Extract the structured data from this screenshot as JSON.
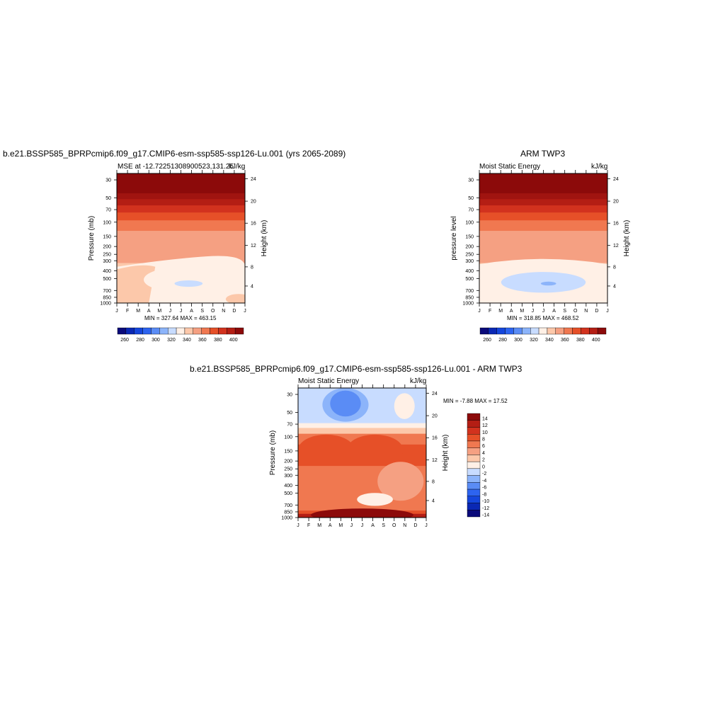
{
  "chart_data": [
    {
      "type": "heatmap",
      "title": "b.e21.BSSP585_BPRPcmip6.f09_g17.CMIP6-esm-ssp585-ssp126-Lu.001 (yrs 2065-2089)",
      "subtitle_left": "MSE at -12.72251308900523,131.25",
      "subtitle_right": "kJ/kg",
      "ylabel": "Pressure (mb)",
      "ylabel_right": "Height (km)",
      "x_ticks": [
        "J",
        "F",
        "M",
        "A",
        "M",
        "J",
        "J",
        "A",
        "S",
        "O",
        "N",
        "D",
        "J"
      ],
      "y_ticks": [
        "30",
        "50",
        "70",
        "100",
        "150",
        "200",
        "250",
        "300",
        "400",
        "500",
        "700",
        "850",
        "1000"
      ],
      "y_ticks_right": [
        "24",
        "20",
        "16",
        "12",
        "8",
        "4"
      ],
      "minmax_text": "MIN = 327.64 MAX = 463.15",
      "min": 327.64,
      "max": 463.15,
      "colorbar": {
        "labels": [
          "260",
          "280",
          "300",
          "320",
          "340",
          "360",
          "380",
          "400"
        ],
        "colors": [
          "#0a0a7a",
          "#0a28b4",
          "#1546dc",
          "#2d64f0",
          "#5a8cf5",
          "#8cb4fa",
          "#c8dcff",
          "#fff0e6",
          "#fcc8aa",
          "#f5a082",
          "#f07850",
          "#e65028",
          "#d2321e",
          "#b41e14",
          "#8c0a0a"
        ]
      }
    },
    {
      "type": "heatmap",
      "title": "ARM TWP3",
      "subtitle_left": "Moist Static Energy",
      "subtitle_right": "kJ/kg",
      "ylabel": "pressure level",
      "ylabel_right": "Height (km)",
      "x_ticks": [
        "J",
        "F",
        "M",
        "A",
        "M",
        "J",
        "J",
        "A",
        "S",
        "O",
        "N",
        "D",
        "J"
      ],
      "y_ticks": [
        "30",
        "50",
        "70",
        "100",
        "150",
        "200",
        "250",
        "300",
        "400",
        "500",
        "700",
        "850",
        "1000"
      ],
      "y_ticks_right": [
        "24",
        "20",
        "16",
        "12",
        "8",
        "4"
      ],
      "minmax_text": "MIN = 318.85 MAX = 468.52",
      "min": 318.85,
      "max": 468.52,
      "colorbar": {
        "labels": [
          "260",
          "280",
          "300",
          "320",
          "340",
          "360",
          "380",
          "400"
        ],
        "colors": [
          "#0a0a7a",
          "#0a28b4",
          "#1546dc",
          "#2d64f0",
          "#5a8cf5",
          "#8cb4fa",
          "#c8dcff",
          "#fff0e6",
          "#fcc8aa",
          "#f5a082",
          "#f07850",
          "#e65028",
          "#d2321e",
          "#b41e14",
          "#8c0a0a"
        ]
      }
    },
    {
      "type": "heatmap",
      "title": "b.e21.BSSP585_BPRPcmip6.f09_g17.CMIP6-esm-ssp585-ssp126-Lu.001 - ARM TWP3",
      "subtitle_left": "Moist Static Energy",
      "subtitle_right": "kJ/kg",
      "ylabel": "Pressure (mb)",
      "ylabel_right": "Height (km)",
      "x_ticks": [
        "J",
        "F",
        "M",
        "A",
        "M",
        "J",
        "J",
        "A",
        "S",
        "O",
        "N",
        "D",
        "J"
      ],
      "y_ticks": [
        "30",
        "50",
        "70",
        "100",
        "150",
        "200",
        "250",
        "300",
        "400",
        "500",
        "700",
        "850",
        "1000"
      ],
      "y_ticks_right": [
        "24",
        "20",
        "16",
        "12",
        "8",
        "4"
      ],
      "minmax_text": "MIN =  -7.88 MAX =  17.52",
      "min": -7.88,
      "max": 17.52,
      "colorbar": {
        "labels": [
          "14",
          "12",
          "10",
          "8",
          "6",
          "4",
          "2",
          "0",
          "-2",
          "-4",
          "-6",
          "-8",
          "-10",
          "-12",
          "-14"
        ],
        "colors": [
          "#8c0a0a",
          "#b41e14",
          "#d2321e",
          "#e65028",
          "#f07850",
          "#f5a082",
          "#fcc8aa",
          "#fff0e6",
          "#c8dcff",
          "#8cb4fa",
          "#5a8cf5",
          "#2d64f0",
          "#1546dc",
          "#0a28b4",
          "#0a0a7a"
        ]
      }
    }
  ]
}
